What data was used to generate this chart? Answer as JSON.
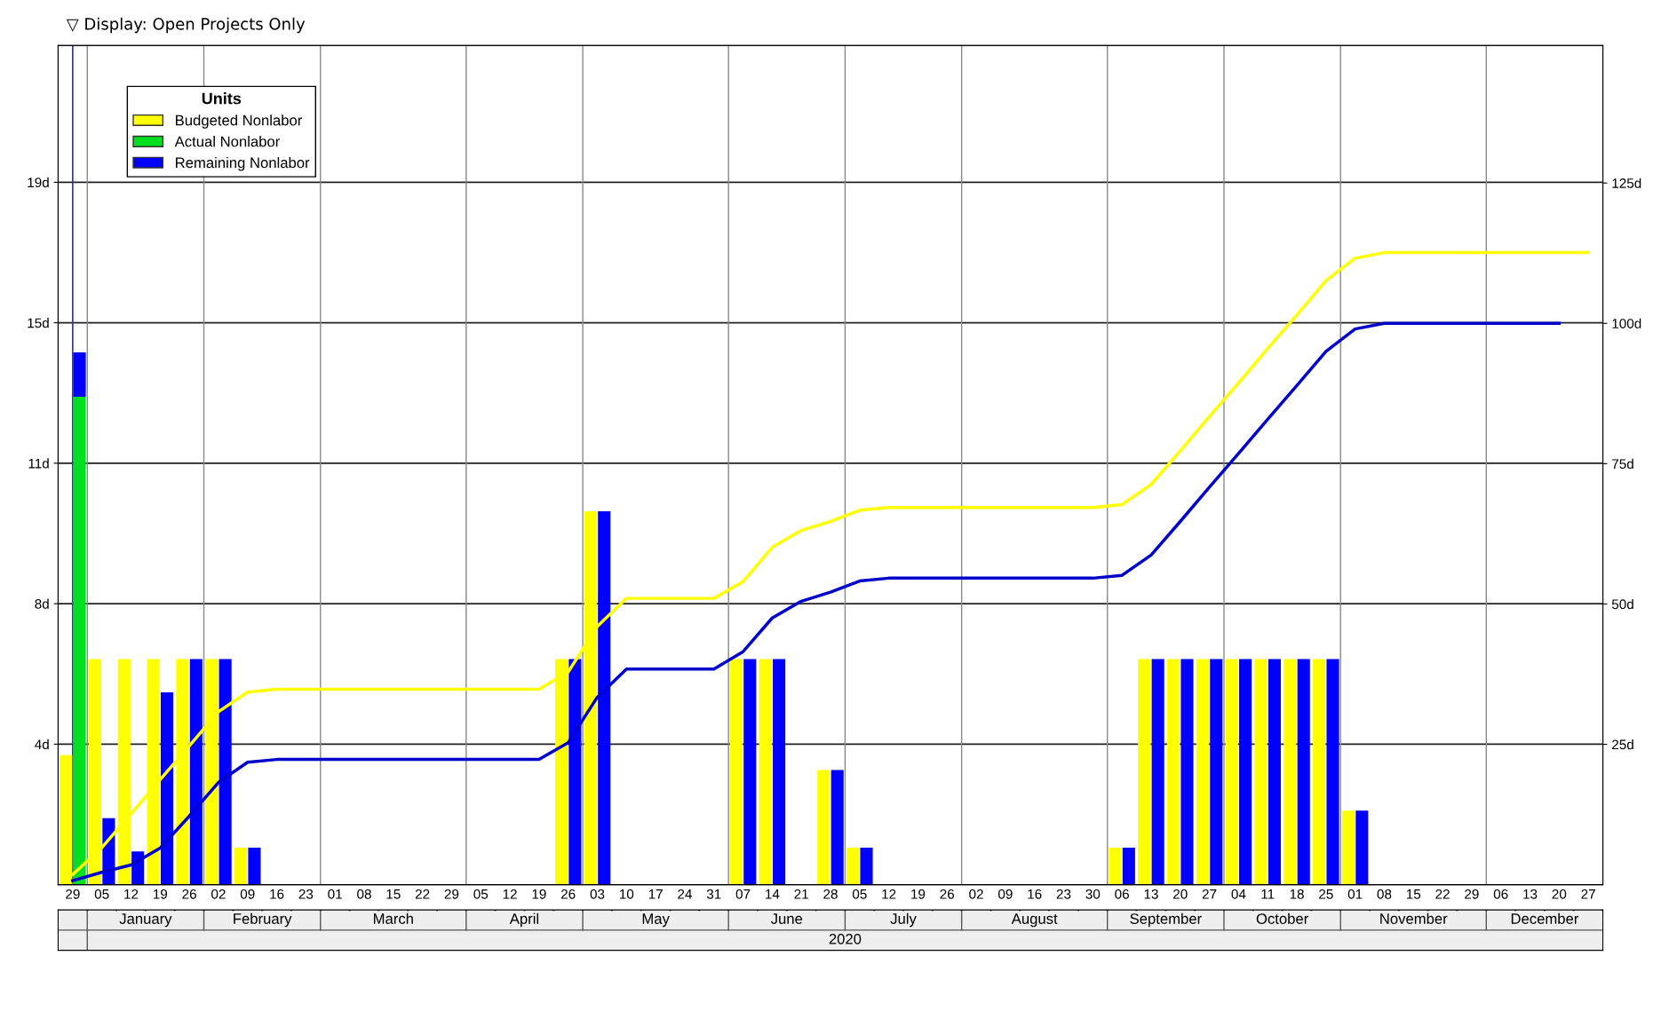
{
  "chart_data": {
    "type": "bar",
    "legend_title": "Units",
    "legend": "top left",
    "grid": "y",
    "categories": [
      "29",
      "05",
      "12",
      "19",
      "26",
      "02",
      "09",
      "16",
      "23",
      "01",
      "08",
      "15",
      "22",
      "29",
      "05",
      "12",
      "19",
      "26",
      "03",
      "10",
      "17",
      "24",
      "31",
      "07",
      "14",
      "21",
      "28",
      "05",
      "12",
      "19",
      "26",
      "02",
      "09",
      "16",
      "23",
      "30",
      "06",
      "13",
      "20",
      "27",
      "04",
      "11",
      "18",
      "25",
      "01",
      "08",
      "15",
      "22",
      "29",
      "06",
      "13",
      "20",
      "27"
    ],
    "series": [
      {
        "name": "Budgeted Nonlabor",
        "color": "#ffff00",
        "values": [
          3.5,
          6.1,
          6.1,
          6.1,
          6.1,
          6.1,
          1.0,
          0,
          0,
          0,
          0,
          0,
          0,
          0,
          0,
          0,
          0,
          6.1,
          10.1,
          0,
          0,
          0,
          0,
          6.1,
          6.1,
          0,
          3.1,
          1.0,
          0,
          0,
          0,
          0,
          0,
          0,
          0,
          0,
          1.0,
          6.1,
          6.1,
          6.1,
          6.1,
          6.1,
          6.1,
          6.1,
          2.0,
          0,
          0,
          0,
          0,
          0,
          0,
          0,
          0
        ]
      },
      {
        "name": "Actual Nonlabor",
        "color": "#00e020",
        "values": [
          13.2,
          0,
          0,
          0,
          0,
          0,
          0,
          0,
          0,
          0,
          0,
          0,
          0,
          0,
          0,
          0,
          0,
          0,
          0,
          0,
          0,
          0,
          0,
          0,
          0,
          0,
          0,
          0,
          0,
          0,
          0,
          0,
          0,
          0,
          0,
          0,
          0,
          0,
          0,
          0,
          0,
          0,
          0,
          0,
          0,
          0,
          0,
          0,
          0,
          0,
          0,
          0,
          0
        ]
      },
      {
        "name": "Remaining Nonlabor",
        "color": "#0000ff",
        "base": [
          13.2,
          0,
          0,
          0,
          0,
          0,
          0,
          null,
          null,
          null,
          null,
          null,
          null,
          null,
          null,
          null,
          null,
          0,
          0,
          null,
          null,
          null,
          null,
          0,
          0,
          null,
          0,
          0,
          null,
          null,
          null,
          null,
          null,
          null,
          null,
          null,
          0,
          0,
          0,
          0,
          0,
          0,
          0,
          0,
          0,
          null,
          null,
          null,
          null,
          null,
          null,
          null,
          null
        ],
        "values": [
          1.2,
          1.8,
          0.9,
          5.2,
          6.1,
          6.1,
          1.0,
          0,
          0,
          0,
          0,
          0,
          0,
          0,
          0,
          0,
          0,
          6.1,
          10.1,
          0,
          0,
          0,
          0,
          6.1,
          6.1,
          0,
          3.1,
          1.0,
          0,
          0,
          0,
          0,
          0,
          0,
          0,
          0,
          1.0,
          6.1,
          6.1,
          6.1,
          6.1,
          6.1,
          6.1,
          6.1,
          2.0,
          0,
          0,
          0,
          0,
          0,
          0,
          0,
          0
        ]
      },
      {
        "type": "line",
        "axis": "y2",
        "color": "#ffff00",
        "values": [
          1.8,
          6.6,
          12.6,
          18.7,
          24.7,
          30.8,
          34.3,
          34.8,
          34.8,
          34.8,
          34.8,
          34.8,
          34.8,
          34.8,
          34.8,
          34.8,
          34.8,
          37.9,
          46.0,
          51.0,
          51.0,
          51.0,
          51.0,
          54.0,
          60.1,
          63.1,
          64.7,
          66.7,
          67.2,
          67.2,
          67.2,
          67.2,
          67.2,
          67.2,
          67.2,
          67.2,
          67.7,
          71.3,
          77.3,
          83.4,
          89.4,
          95.5,
          101.5,
          107.6,
          111.6,
          112.6,
          112.6,
          112.6,
          112.6,
          112.6,
          112.6,
          112.6,
          112.6
        ]
      },
      {
        "type": "line",
        "axis": "y2",
        "color": "#0000cc",
        "values": [
          0.7,
          2.2,
          3.5,
          6.5,
          12.2,
          18.2,
          21.8,
          22.3,
          22.3,
          22.3,
          22.3,
          22.3,
          22.3,
          22.3,
          22.3,
          22.3,
          22.3,
          25.3,
          33.4,
          38.4,
          38.4,
          38.4,
          38.4,
          41.5,
          47.5,
          50.5,
          52.1,
          54.1,
          54.6,
          54.6,
          54.6,
          54.6,
          54.6,
          54.6,
          54.6,
          54.6,
          55.1,
          58.7,
          64.7,
          70.8,
          76.8,
          82.9,
          88.9,
          95.0,
          99.0,
          100.0,
          100.0,
          100.0,
          100.0,
          100.0,
          100.0,
          100.0,
          null
        ]
      }
    ],
    "ylim": [
      0,
      22.7
    ],
    "yticks": [
      {
        "value": 3.8,
        "label": "4d"
      },
      {
        "value": 7.6,
        "label": "8d"
      },
      {
        "value": 11.4,
        "label": "11d"
      },
      {
        "value": 15.2,
        "label": "15d"
      },
      {
        "value": 19,
        "label": "19d"
      }
    ],
    "y2lim": [
      0,
      149.5
    ],
    "y2ticks": [
      {
        "value": 25,
        "label": "25d"
      },
      {
        "value": 50,
        "label": "50d"
      },
      {
        "value": 75,
        "label": "75d"
      },
      {
        "value": 100,
        "label": "100d"
      },
      {
        "value": 125,
        "label": "125d"
      }
    ],
    "ref_lines": [
      {
        "axis": "x",
        "value": "29",
        "color": "#3030c0"
      }
    ],
    "annotations": [
      "▽ Display: Open Projects Only",
      "January",
      "February",
      "March",
      "April",
      "May",
      "June",
      "July",
      "August",
      "September",
      "October",
      "November",
      "December",
      "2020"
    ]
  }
}
